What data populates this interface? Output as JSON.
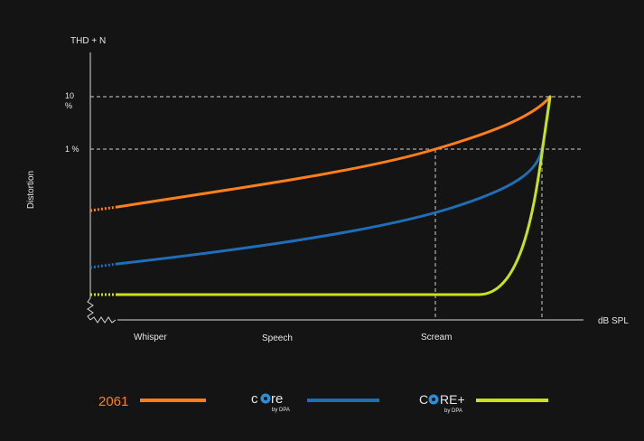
{
  "chart_data": {
    "type": "line",
    "ylabel_top": "THD + N",
    "ylabel_side": "Distortion",
    "xlabel": "dB SPL",
    "y_ticks": [
      "10 %",
      "1 %"
    ],
    "x_categories": [
      "Whisper",
      "Speech",
      "Scream"
    ],
    "y_scale": "log",
    "grid": "dashed reference lines at 10 % and 1 %",
    "legend_position": "bottom",
    "series": [
      {
        "name": "2061",
        "color": "#ff7f1a",
        "shape": "distortion rises gradually from low level, crosses 1 % at Scream, reaches 10 % at the end"
      },
      {
        "name": "core by DPA",
        "color": "#1f6fb8",
        "shape": "lower distortion, rises slowly then steeply near the end to reach 10 %"
      },
      {
        "name": "CORE+ by DPA",
        "color": "#c9e21c",
        "shape": "flat at lowest distortion until after Scream, then rises sharply to 10 %"
      }
    ]
  },
  "legend": {
    "item1_text": "2061",
    "item2_logo": "core",
    "item2_sub": "by DPA",
    "item3_logo": "CORE+",
    "item3_sub": "by DPA"
  }
}
